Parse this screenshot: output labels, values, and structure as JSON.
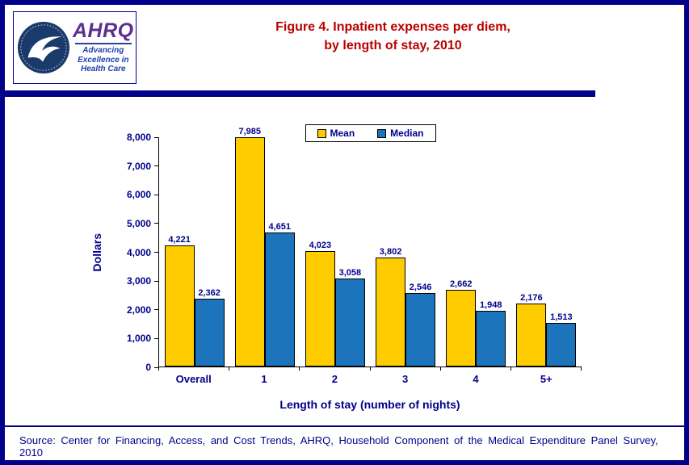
{
  "header": {
    "logo": {
      "org_abbrev": "AHRQ",
      "tagline_lines": [
        "Advancing",
        "Excellence in",
        "Health Care"
      ]
    },
    "title_lines": [
      "Figure 4. Inpatient expenses per diem,",
      "by length of stay, 2010"
    ]
  },
  "chart_data": {
    "type": "bar",
    "title": "Figure 4. Inpatient expenses per diem, by length of stay, 2010",
    "categories": [
      "Overall",
      "1",
      "2",
      "3",
      "4",
      "5+"
    ],
    "series": [
      {
        "name": "Mean",
        "color": "#FFCC00",
        "values": [
          4221,
          7985,
          4023,
          3802,
          2662,
          2176
        ]
      },
      {
        "name": "Median",
        "color": "#1C75BC",
        "values": [
          2362,
          4651,
          3058,
          2546,
          1948,
          1513
        ]
      }
    ],
    "xlabel": "Length of stay (number of nights)",
    "ylabel": "Dollars",
    "ylim": [
      0,
      8000
    ],
    "ytick_step": 1000,
    "grid": false,
    "legend_position": "top-center",
    "value_labels": true
  },
  "footer": {
    "source": "Source: Center for Financing, Access, and Cost Trends, AHRQ, Household Component of the Medical Expenditure Panel Survey, 2010"
  },
  "colors": {
    "border_navy": "#00008B",
    "title_red": "#BB0000",
    "text_navy": "#00008B",
    "mean_gold": "#FFCC00",
    "median_blue": "#1C75BC",
    "ahrq_purple": "#5B2E91",
    "seal_blue": "#1A3A6B"
  }
}
